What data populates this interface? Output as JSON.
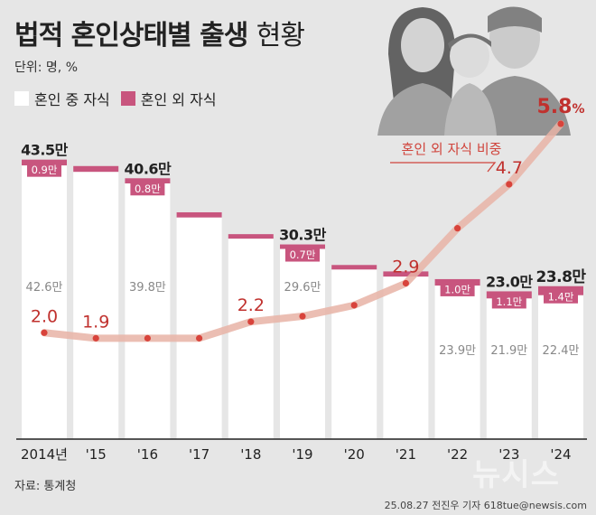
{
  "title": {
    "main": "법적 혼인상태별 출생",
    "light": "현황"
  },
  "unit": "단위: 명, %",
  "legend": {
    "inside": {
      "label": "혼인 중 자식",
      "color": "#ffffff"
    },
    "outside": {
      "label": "혼인 외 자식",
      "color": "#c8557e"
    }
  },
  "source": "자료: 통계청",
  "credit": "25.08.27 전진우 기자 618tue@newsis.com",
  "watermark": "뉴시스",
  "chart_data": {
    "type": "bar",
    "categories": [
      "2014년",
      "'15",
      "'16",
      "'17",
      "'18",
      "'19",
      "'20",
      "'21",
      "'22",
      "'23",
      "'24"
    ],
    "series": [
      {
        "name": "혼인 중 자식",
        "values": [
          42.6,
          41.6,
          39.8,
          34.5,
          31.2,
          29.6,
          26.4,
          25.3,
          23.9,
          21.9,
          22.4
        ]
      },
      {
        "name": "혼인 외 자식",
        "values": [
          0.9,
          0.9,
          0.8,
          0.8,
          0.7,
          0.7,
          0.7,
          0.8,
          1.0,
          1.1,
          1.4
        ]
      }
    ],
    "totals": [
      43.5,
      42.5,
      40.6,
      35.3,
      31.9,
      30.3,
      27.1,
      26.1,
      24.9,
      23.0,
      23.8
    ],
    "total_labels": [
      "43.5만",
      "",
      "40.6만",
      "",
      "",
      "30.3만",
      "",
      "",
      "",
      "23.0만",
      "23.8만"
    ],
    "inside_labels": [
      "42.6만",
      "",
      "39.8만",
      "",
      "",
      "29.6만",
      "",
      "",
      "23.9만",
      "21.9만",
      "22.4만"
    ],
    "outside_labels": [
      "0.9만",
      "",
      "0.8만",
      "",
      "",
      "0.7만",
      "",
      "",
      "1.0만",
      "1.1만",
      "1.4만"
    ],
    "bar_ylim": [
      0,
      45
    ],
    "line": {
      "name": "혼인 외 자식 비중",
      "values": [
        2.0,
        1.9,
        1.9,
        1.9,
        2.2,
        2.3,
        2.5,
        2.9,
        3.9,
        4.7,
        5.8
      ],
      "labels": [
        "2.0",
        "1.9",
        "",
        "",
        "2.2",
        "",
        "",
        "2.9",
        "",
        "4.7",
        "5.8"
      ],
      "last_label_suffix": "%",
      "color": "#e8b3a6",
      "point_color": "#d8433b",
      "ylim": [
        0,
        7
      ]
    }
  }
}
